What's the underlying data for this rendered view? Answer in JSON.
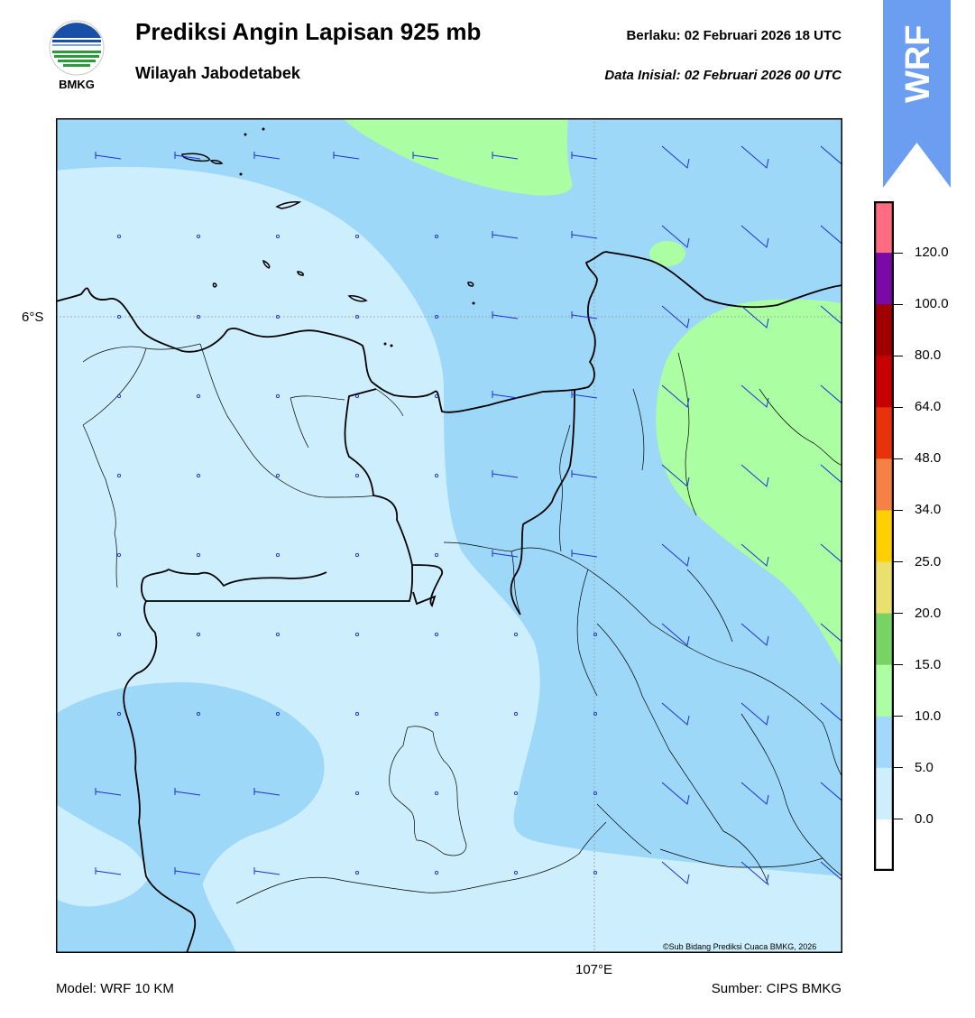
{
  "header": {
    "title": "Prediksi Angin Lapisan 925 mb",
    "region": "Wilayah Jabodetabek",
    "valid_label": "Berlaku:  02 Februari 2026 18 UTC",
    "init_label": "Data Inisial:  02 Februari 2026 00 UTC"
  },
  "logo": {
    "text": "BMKG",
    "icon": "bmkg-logo"
  },
  "badge": {
    "text": "WRF",
    "color": "#6b9ef0"
  },
  "map": {
    "lat_label": "6°S",
    "lon_label": "107°E",
    "credit": "©Sub Bidang Prediksi Cuaca BMKG, 2026",
    "colors": {
      "calm": "#cdeefc",
      "light": "#9dd8f8",
      "moderate": "#acfea2"
    }
  },
  "colorbar": {
    "labels": [
      "120.0",
      "100.0",
      "80.0",
      "64.0",
      "48.0",
      "34.0",
      "25.0",
      "20.0",
      "15.0",
      "10.0",
      "5.0",
      "0.0"
    ],
    "colors": [
      "#ff6b80",
      "#7a0aa8",
      "#a00000",
      "#c80000",
      "#e8320a",
      "#f58244",
      "#ffd000",
      "#eae070",
      "#78d264",
      "#acfea2",
      "#a2d8fa",
      "#cdeefc",
      "#ffffff"
    ]
  },
  "footer": {
    "model": "Model: WRF 10 KM",
    "source": "Sumber: CIPS BMKG"
  }
}
